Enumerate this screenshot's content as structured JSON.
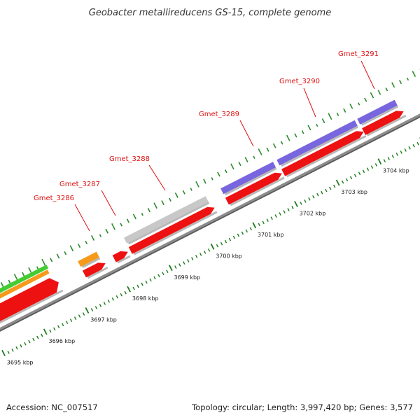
{
  "title": "Geobacter metallireducens GS-15, complete genome",
  "footer": {
    "accession": "Accession: NC_007517",
    "summary": "Topology: circular; Length: 3,997,420 bp; Genes: 3,577"
  },
  "colors": {
    "cds": "#ee1111",
    "gene_orange": "#f59a1a",
    "gene_gray": "#c8c8c8",
    "gene_purple": "#7766dd",
    "gene_green": "#44cc33",
    "backbone": "#8c8c8c",
    "gc_tick": "#2a8a2a",
    "ruler_tick": "#1a7a1a",
    "label_red": "#dd1111"
  },
  "genes": [
    {
      "id": "Gmet_3286",
      "label": "Gmet_3286",
      "color": "orange"
    },
    {
      "id": "Gmet_3287",
      "label": "Gmet_3287",
      "color": "red"
    },
    {
      "id": "Gmet_3288",
      "label": "Gmet_3288",
      "color": "gray"
    },
    {
      "id": "Gmet_3289",
      "label": "Gmet_3289",
      "color": "purple"
    },
    {
      "id": "Gmet_3290",
      "label": "Gmet_3290",
      "color": "purple"
    },
    {
      "id": "Gmet_3291",
      "label": "Gmet_3291",
      "color": "purple"
    }
  ],
  "ruler": [
    {
      "label": "3695 kbp"
    },
    {
      "label": "3696 kbp"
    },
    {
      "label": "3697 kbp"
    },
    {
      "label": "3698 kbp"
    },
    {
      "label": "3699 kbp"
    },
    {
      "label": "3700 kbp"
    },
    {
      "label": "3701 kbp"
    },
    {
      "label": "3702 kbp"
    },
    {
      "label": "3703 kbp"
    },
    {
      "label": "3704 kbp"
    }
  ]
}
